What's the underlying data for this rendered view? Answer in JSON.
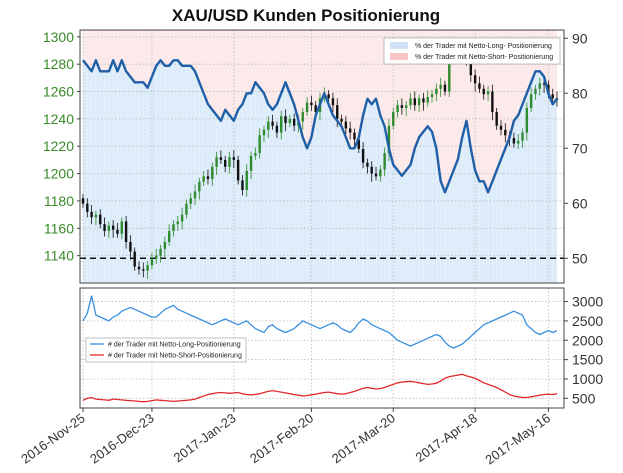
{
  "title": "XAU/USD Kunden Positionierung",
  "chart_data": [
    {
      "type": "candlestick+line",
      "title": "XAU/USD Kunden Positionierung",
      "y_left": {
        "ticks": [
          1140,
          1160,
          1180,
          1200,
          1220,
          1240,
          1260,
          1280,
          1300
        ],
        "range": [
          1120,
          1305
        ]
      },
      "y_right": {
        "ticks": [
          50,
          60,
          70,
          80,
          90
        ],
        "range": [
          45.5,
          91.5
        ]
      },
      "reference_line": 50,
      "legend": [
        {
          "label": "% der Trader mit Netto-Long- Positionierung",
          "color": "#cfe2f7"
        },
        {
          "label": "% der Trader mit Netto-Short- Positionierung",
          "color": "#f6c4c4"
        }
      ],
      "price_close": [
        1178,
        1172,
        1168,
        1170,
        1163,
        1158,
        1162,
        1159,
        1156,
        1165,
        1150,
        1143,
        1132,
        1130,
        1129,
        1133,
        1138,
        1140,
        1145,
        1150,
        1158,
        1163,
        1165,
        1170,
        1178,
        1182,
        1187,
        1194,
        1198,
        1196,
        1205,
        1212,
        1210,
        1205,
        1212,
        1210,
        1195,
        1188,
        1202,
        1213,
        1215,
        1228,
        1232,
        1238,
        1235,
        1230,
        1242,
        1237,
        1240,
        1235,
        1238,
        1245,
        1252,
        1250,
        1245,
        1255,
        1258,
        1255,
        1250,
        1240,
        1238,
        1233,
        1230,
        1225,
        1218,
        1208,
        1205,
        1200,
        1198,
        1203,
        1215,
        1235,
        1245,
        1250,
        1248,
        1250,
        1255,
        1250,
        1255,
        1252,
        1256,
        1258,
        1262,
        1265,
        1260,
        1285,
        1288,
        1290,
        1285,
        1283,
        1272,
        1266,
        1262,
        1258,
        1260,
        1245,
        1235,
        1232,
        1228,
        1226,
        1222,
        1224,
        1230,
        1248,
        1258,
        1262,
        1266,
        1265,
        1258,
        1255,
        1254
      ],
      "pct_long": [
        86,
        85,
        84,
        86,
        84,
        84,
        84,
        86,
        84,
        86,
        84,
        83,
        82,
        82,
        82,
        81,
        83,
        85,
        86,
        85,
        85,
        86,
        86,
        85,
        85,
        85,
        84,
        82,
        80,
        78,
        77,
        76,
        75,
        77,
        76,
        75,
        77,
        78,
        80,
        80,
        82,
        81,
        80,
        78,
        77,
        78,
        80,
        82,
        80,
        78,
        75,
        72,
        70,
        72,
        76,
        78,
        80,
        78,
        76,
        75,
        74,
        72,
        70,
        70,
        72,
        76,
        79,
        78,
        79,
        76,
        74,
        70,
        67,
        66,
        65,
        66,
        67,
        70,
        72,
        73,
        74,
        73,
        70,
        64,
        62,
        64,
        66,
        68,
        72,
        75,
        70,
        66,
        64,
        64,
        62,
        64,
        66,
        68,
        70,
        72,
        75,
        76,
        78,
        80,
        82,
        84,
        84,
        83,
        80,
        78,
        79
      ],
      "net_long": [
        2500,
        2700,
        3150,
        2650,
        2600,
        2550,
        2500,
        2600,
        2650,
        2750,
        2800,
        2850,
        2800,
        2750,
        2700,
        2650,
        2600,
        2600,
        2700,
        2800,
        2850,
        2900,
        2800,
        2750,
        2700,
        2650,
        2600,
        2550,
        2500,
        2450,
        2400,
        2450,
        2500,
        2550,
        2500,
        2450,
        2400,
        2450,
        2500,
        2400,
        2300,
        2250,
        2200,
        2350,
        2400,
        2300,
        2250,
        2200,
        2250,
        2300,
        2400,
        2500,
        2450,
        2400,
        2350,
        2300,
        2350,
        2400,
        2450,
        2400,
        2300,
        2250,
        2200,
        2300,
        2450,
        2550,
        2500,
        2400,
        2350,
        2300,
        2250,
        2200,
        2100,
        2000,
        1950,
        1900,
        1850,
        1900,
        1950,
        2000,
        2050,
        2100,
        2150,
        2100,
        1950,
        1850,
        1800,
        1850,
        1900,
        2000,
        2100,
        2200,
        2300,
        2400,
        2450,
        2500,
        2550,
        2600,
        2650,
        2700,
        2750,
        2700,
        2650,
        2400,
        2300,
        2200,
        2150,
        2200,
        2250,
        2200,
        2250
      ],
      "net_short": [
        450,
        500,
        520,
        480,
        470,
        460,
        450,
        480,
        470,
        460,
        450,
        440,
        430,
        420,
        410,
        420,
        440,
        460,
        450,
        440,
        430,
        420,
        430,
        440,
        450,
        460,
        480,
        520,
        560,
        600,
        620,
        640,
        650,
        640,
        630,
        640,
        650,
        620,
        600,
        590,
        600,
        620,
        650,
        680,
        700,
        680,
        660,
        640,
        620,
        600,
        580,
        560,
        570,
        590,
        610,
        630,
        650,
        660,
        640,
        620,
        610,
        620,
        650,
        680,
        720,
        760,
        780,
        760,
        740,
        750,
        780,
        820,
        860,
        900,
        920,
        930,
        940,
        920,
        900,
        880,
        860,
        870,
        890,
        950,
        1020,
        1060,
        1080,
        1100,
        1120,
        1080,
        1050,
        1020,
        960,
        900,
        860,
        820,
        780,
        720,
        660,
        600,
        560,
        540,
        520,
        520,
        540,
        560,
        580,
        600,
        610,
        600,
        620
      ],
      "y_bottom": {
        "ticks": [
          500,
          1000,
          1500,
          2000,
          2500,
          3000
        ],
        "range": [
          250,
          3350
        ]
      },
      "bottom_legend": [
        {
          "label": "# der Trader mit Netto-Long-Positionierung",
          "color": "#3a8fe0"
        },
        {
          "label": "# der Trader mit Netto-Short-Positionierung",
          "color": "#e02a2a"
        }
      ],
      "x_ticks": [
        "2016-Nov-25",
        "2016-Dec-23",
        "2017-Jan-23",
        "2017-Feb-20",
        "2017-Mar-20",
        "2017-Apr-18",
        "2017-May-16"
      ]
    }
  ],
  "colors": {
    "long_fill": "#d6e7f8",
    "short_fill": "#fbe1e1",
    "sentiment_line": "#1f5fa8",
    "candle_up": "#2e8b2e",
    "candle_down": "#111111",
    "long_count_line": "#3a8fe0",
    "short_count_line": "#e02a2a"
  }
}
